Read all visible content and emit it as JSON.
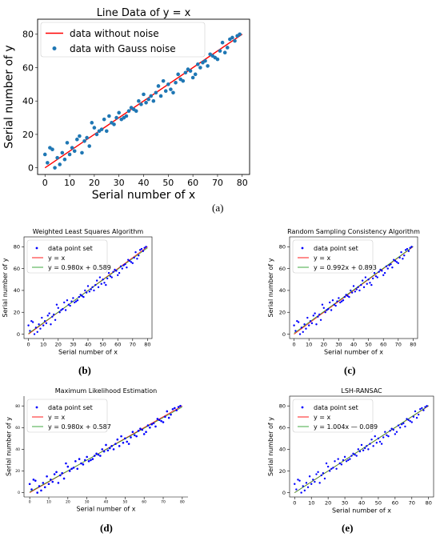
{
  "panel_captions": [
    "(a)",
    "(b)",
    "(c)",
    "(d)",
    "(e)"
  ],
  "chart_data": [
    {
      "type": "scatter",
      "title": "Line Data of y = x",
      "xlabel": "Serial number of x",
      "ylabel": "Serial number of y",
      "xlim": [
        -3,
        83
      ],
      "ylim": [
        -4,
        89
      ],
      "xticks": [
        "0",
        "10",
        "20",
        "30",
        "40",
        "50",
        "60",
        "70",
        "80"
      ],
      "yticks": [
        "0",
        "20",
        "40",
        "60",
        "80"
      ],
      "legend": [
        "data without noise",
        "data with Gauss noise"
      ],
      "legend_position": "top-left",
      "colors": {
        "line": "#ff0000",
        "points": "#1f77b4"
      },
      "series": [
        {
          "name": "data without noise",
          "kind": "line",
          "x": [
            0,
            80
          ],
          "y": [
            0,
            80
          ]
        },
        {
          "name": "data with Gauss noise",
          "kind": "scatter",
          "x": [
            0,
            1,
            2,
            3,
            4,
            5,
            6,
            7,
            8,
            9,
            10,
            11,
            12,
            13,
            14,
            15,
            16,
            17,
            18,
            19,
            20,
            21,
            22,
            23,
            24,
            25,
            26,
            27,
            28,
            29,
            30,
            31,
            32,
            33,
            34,
            35,
            36,
            37,
            38,
            39,
            40,
            41,
            42,
            43,
            44,
            45,
            46,
            47,
            48,
            49,
            50,
            51,
            52,
            53,
            54,
            55,
            56,
            57,
            58,
            59,
            60,
            61,
            62,
            63,
            64,
            65,
            66,
            67,
            68,
            69,
            70,
            71,
            72,
            73,
            74,
            75,
            76,
            77,
            78,
            79
          ],
          "y": [
            8,
            3,
            12,
            11,
            0,
            6,
            2,
            9,
            5,
            15,
            8,
            12,
            10,
            17,
            19,
            9,
            16,
            18,
            13,
            27,
            24,
            20,
            22,
            23,
            29,
            22,
            31,
            27,
            26,
            30,
            33,
            29,
            30,
            31,
            34,
            36,
            35,
            34,
            40,
            38,
            44,
            39,
            41,
            43,
            40,
            45,
            49,
            43,
            52,
            46,
            50,
            47,
            45,
            51,
            56,
            53,
            52,
            57,
            59,
            58,
            54,
            56,
            62,
            60,
            63,
            64,
            61,
            68,
            67,
            66,
            65,
            70,
            75,
            69,
            72,
            77,
            78,
            76,
            79,
            80
          ]
        }
      ]
    },
    {
      "type": "scatter",
      "title": "Weighted Least Squares Algorithm",
      "xlabel": "Serial number of x",
      "ylabel": "Serial number of y",
      "xlim": [
        -3,
        83
      ],
      "ylim": [
        -4,
        89
      ],
      "xticks": [
        "0",
        "10",
        "20",
        "30",
        "40",
        "50",
        "60",
        "70",
        "80"
      ],
      "yticks": [
        "0",
        "20",
        "40",
        "60",
        "80"
      ],
      "legend": [
        "data point set",
        "y = x",
        "y = 0.980x + 0.589"
      ],
      "legend_position": "top-left",
      "colors": {
        "points": "#0000ff",
        "line1": "#ff0000",
        "line2": "#2ca02c"
      },
      "fit": {
        "slope": 0.98,
        "intercept": 0.589
      }
    },
    {
      "type": "scatter",
      "title": "Random Sampling Consistency Algorithm",
      "xlabel": "Serial number of x",
      "ylabel": "Serial number of y",
      "xlim": [
        -3,
        83
      ],
      "ylim": [
        -4,
        89
      ],
      "xticks": [
        "0",
        "10",
        "20",
        "30",
        "40",
        "50",
        "60",
        "70",
        "80"
      ],
      "yticks": [
        "0",
        "20",
        "40",
        "60",
        "80"
      ],
      "legend": [
        "data point set",
        "y = x",
        "y = 0.992x + 0.893"
      ],
      "legend_position": "top-left",
      "colors": {
        "points": "#0000ff",
        "line1": "#ff0000",
        "line2": "#2ca02c"
      },
      "fit": {
        "slope": 0.992,
        "intercept": 0.893
      }
    },
    {
      "type": "scatter",
      "title": "Maximum Likelihood Estimation",
      "xlabel": "Serial number of x",
      "ylabel": "Serial number of y",
      "xlim": [
        -3,
        83
      ],
      "ylim": [
        -4,
        89
      ],
      "xticks": [
        "0",
        "10",
        "20",
        "30",
        "40",
        "50",
        "60",
        "70",
        "80"
      ],
      "yticks": [
        "0",
        "20",
        "40",
        "60",
        "80"
      ],
      "legend": [
        "data point set",
        "y = x",
        "y = 0.980x + 0.587"
      ],
      "legend_position": "top-left",
      "colors": {
        "points": "#0000ff",
        "line1": "#ff0000",
        "line2": "#2ca02c"
      },
      "fit": {
        "slope": 0.98,
        "intercept": 0.587
      }
    },
    {
      "type": "scatter",
      "title": "LSH-RANSAC",
      "xlabel": "Serial number of x",
      "ylabel": "Serial number of y",
      "xlim": [
        -3,
        83
      ],
      "ylim": [
        -4,
        89
      ],
      "xticks": [
        "0",
        "10",
        "20",
        "30",
        "40",
        "50",
        "60",
        "70",
        "80"
      ],
      "yticks": [
        "0",
        "20",
        "40",
        "60",
        "80"
      ],
      "legend": [
        "data point set",
        "y = x",
        "y = 1.004x — 0.089"
      ],
      "legend_position": "top-left",
      "colors": {
        "points": "#0000ff",
        "line1": "#ff0000",
        "line2": "#2ca02c"
      },
      "fit": {
        "slope": 1.004,
        "intercept": -0.089
      }
    }
  ]
}
